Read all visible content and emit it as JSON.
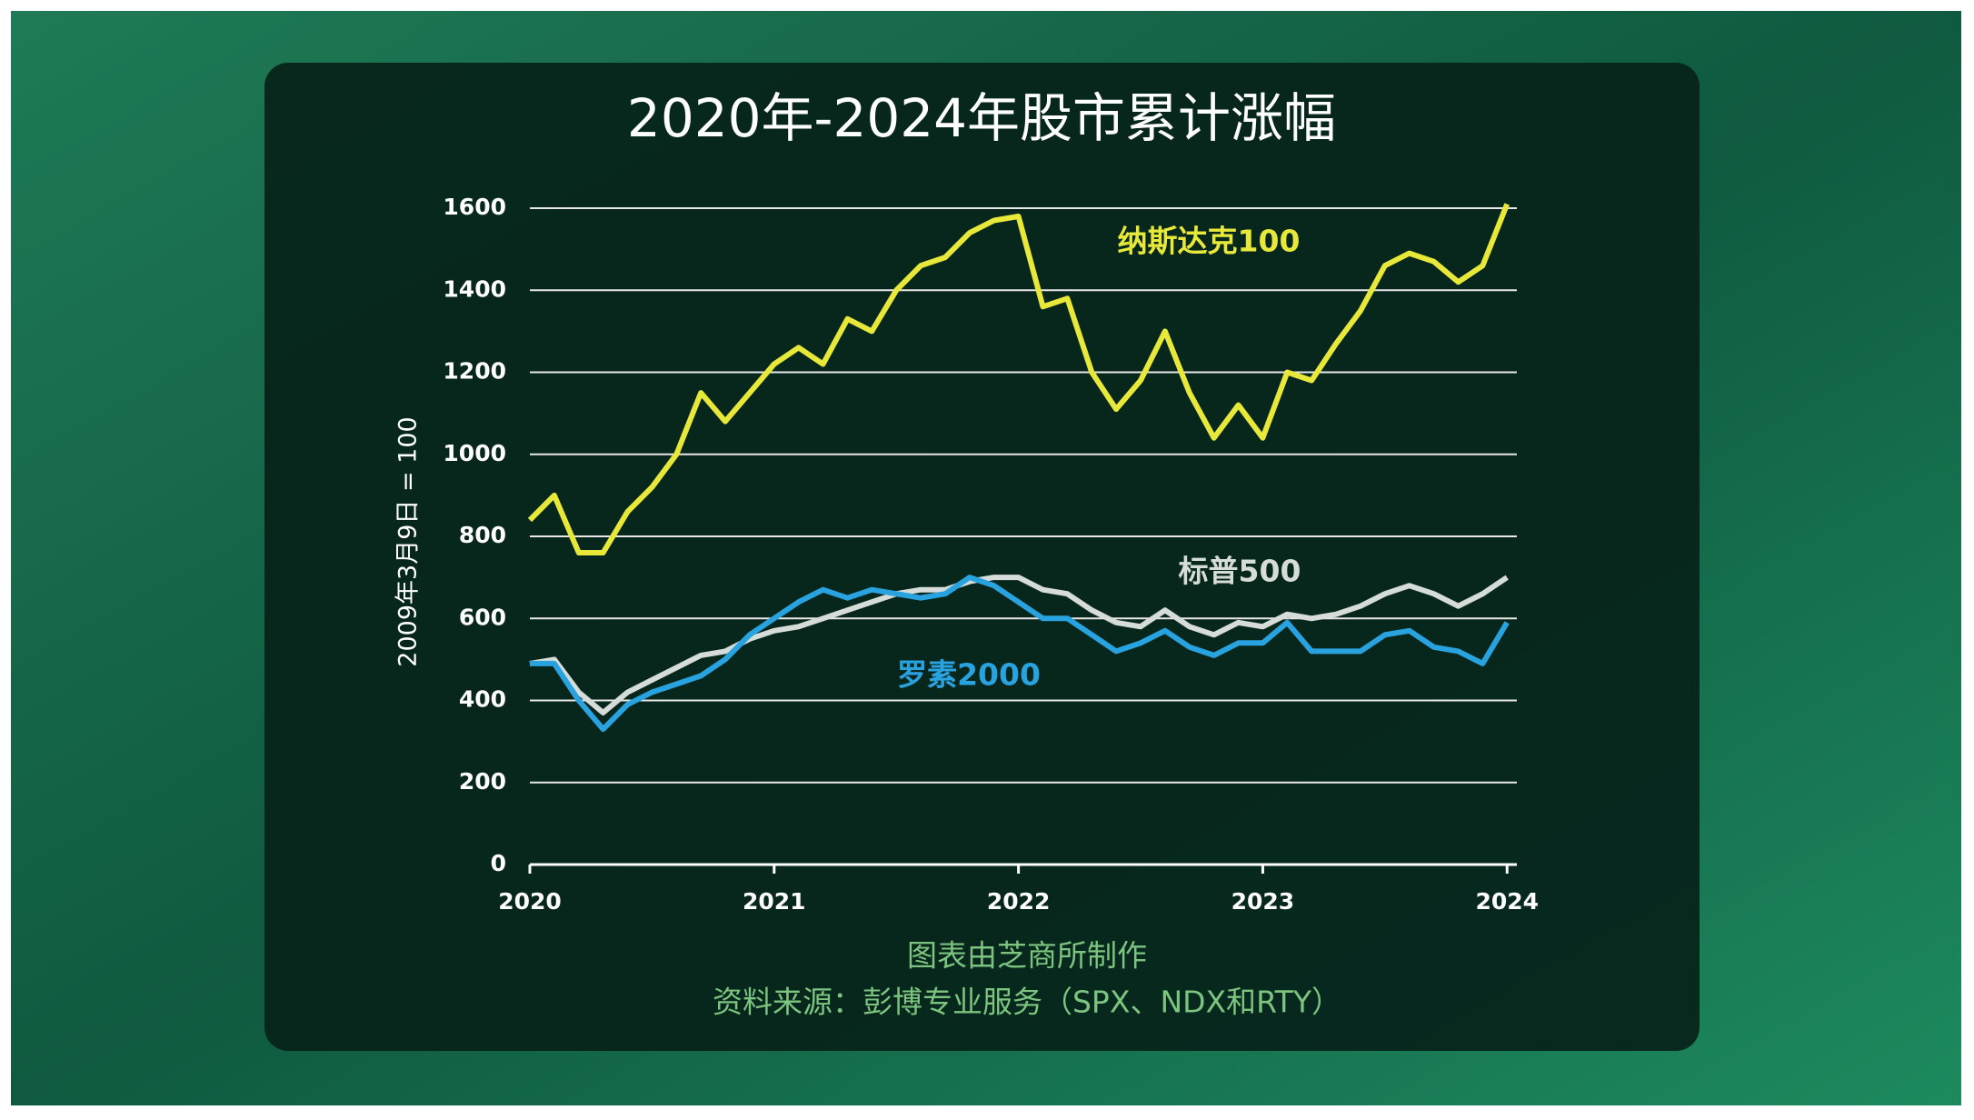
{
  "chart_data": {
    "type": "line",
    "title": "2020年-2024年股市累计涨幅",
    "y_label": "2009年3月9日 = 100",
    "note": "图表由芝商所制作",
    "source": "资料来源：彭博专业服务（SPX、NDX和RTY）",
    "x": [
      2020.0,
      2020.1,
      2020.2,
      2020.3,
      2020.4,
      2020.5,
      2020.6,
      2020.7,
      2020.8,
      2020.9,
      2021.0,
      2021.1,
      2021.2,
      2021.3,
      2021.4,
      2021.5,
      2021.6,
      2021.7,
      2021.8,
      2021.9,
      2022.0,
      2022.1,
      2022.2,
      2022.3,
      2022.4,
      2022.5,
      2022.6,
      2022.7,
      2022.8,
      2022.9,
      2023.0,
      2023.1,
      2023.2,
      2023.3,
      2023.4,
      2023.5,
      2023.6,
      2023.7,
      2023.8,
      2023.9,
      2024.0
    ],
    "series": [
      {
        "name": "纳斯达克100",
        "color": "#e8e83a",
        "values": [
          840,
          900,
          760,
          760,
          860,
          920,
          1000,
          1150,
          1080,
          1150,
          1220,
          1260,
          1220,
          1330,
          1300,
          1400,
          1460,
          1480,
          1540,
          1570,
          1580,
          1360,
          1380,
          1200,
          1110,
          1180,
          1300,
          1150,
          1040,
          1120,
          1040,
          1200,
          1180,
          1270,
          1350,
          1460,
          1490,
          1470,
          1420,
          1460,
          1610
        ]
      },
      {
        "name": "标普500",
        "color": "#d6dcd8",
        "values": [
          490,
          500,
          420,
          370,
          420,
          450,
          480,
          510,
          520,
          550,
          570,
          580,
          600,
          620,
          640,
          660,
          670,
          670,
          690,
          700,
          700,
          670,
          660,
          620,
          590,
          580,
          620,
          580,
          560,
          590,
          580,
          610,
          600,
          610,
          630,
          660,
          680,
          660,
          630,
          660,
          700
        ]
      },
      {
        "name": "罗素2000",
        "color": "#29a3e0",
        "values": [
          490,
          490,
          400,
          330,
          390,
          420,
          440,
          460,
          500,
          560,
          600,
          640,
          670,
          650,
          670,
          660,
          650,
          660,
          700,
          680,
          640,
          600,
          600,
          560,
          520,
          540,
          570,
          530,
          510,
          540,
          540,
          590,
          520,
          520,
          520,
          560,
          570,
          530,
          520,
          490,
          590
        ]
      }
    ],
    "xlim": [
      2020,
      2024.04
    ],
    "xticks": [
      2020,
      2021,
      2022,
      2023,
      2024
    ],
    "ylim": [
      0,
      1600
    ],
    "yticks": [
      0,
      200,
      400,
      600,
      800,
      1000,
      1200,
      1400,
      1600
    ],
    "grid": true
  }
}
